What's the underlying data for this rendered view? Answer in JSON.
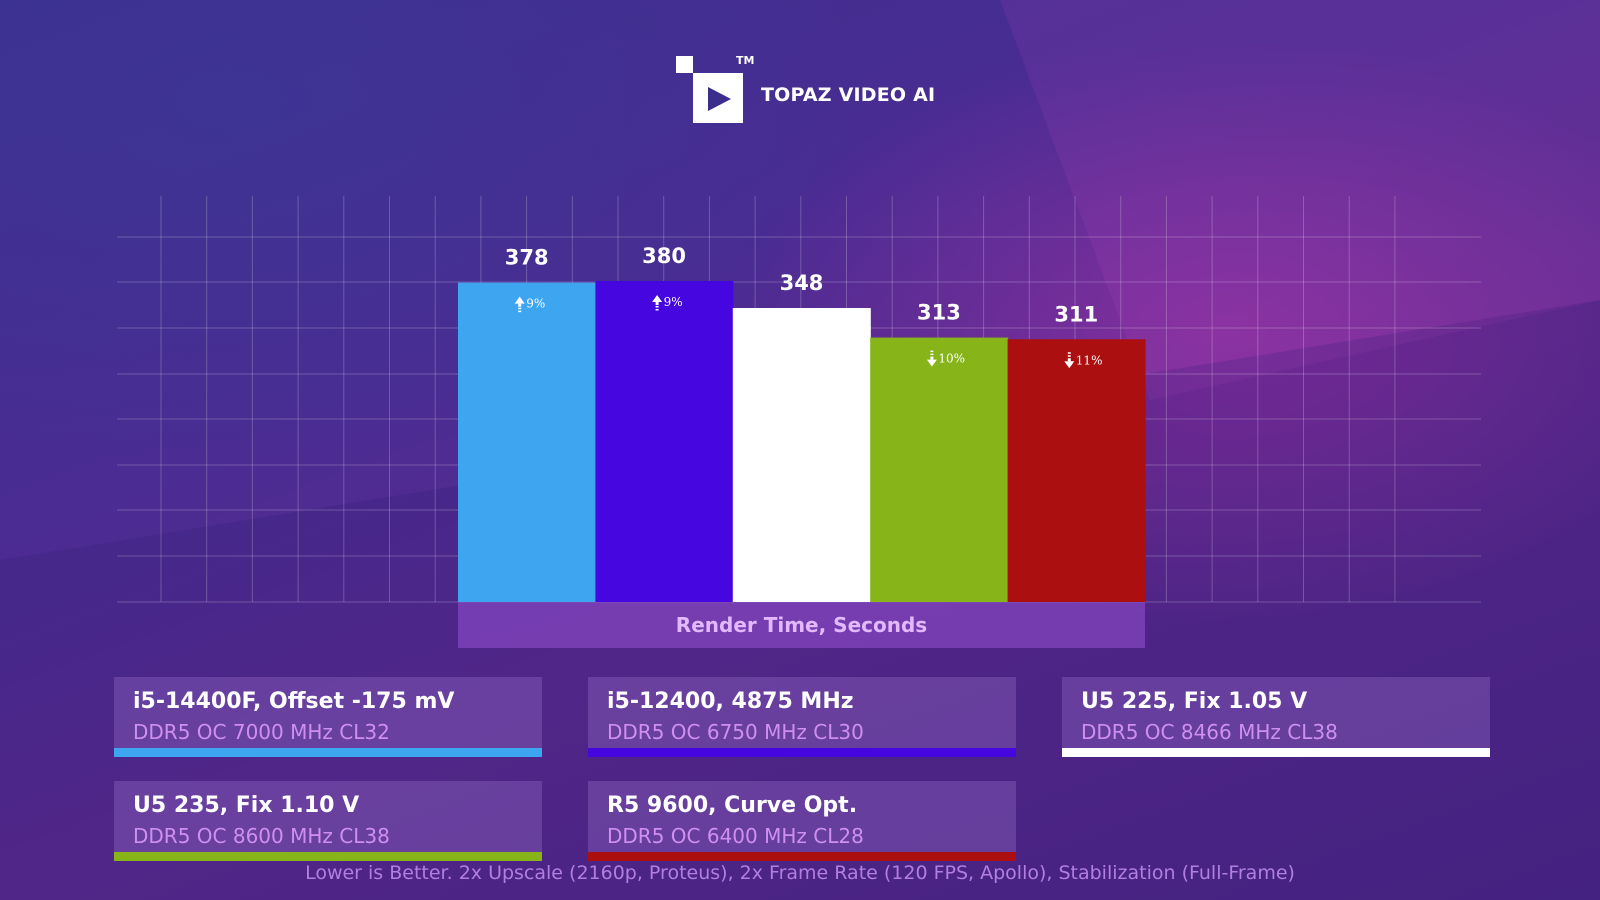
{
  "logo": {
    "brand": "TOPAZ VIDEO AI",
    "trademark": "TM",
    "icon": "play-icon"
  },
  "colors": {
    "series_1": "#3ea6f0",
    "series_2": "#4606e0",
    "series_3": "#ffffff",
    "series_4": "#86b419",
    "series_5": "#ac0f0f"
  },
  "chart_data": {
    "type": "bar",
    "title": "",
    "xlabel": "Render Time, Seconds",
    "ylabel": "",
    "grid": true,
    "bars": [
      {
        "series": "i5-14400F, Offset -175 mV",
        "value": 378,
        "change": "9%",
        "direction": "up",
        "color": "#3ea6f0"
      },
      {
        "series": "i5-12400, 4875 MHz",
        "value": 380,
        "change": "9%",
        "direction": "up",
        "color": "#4606e0"
      },
      {
        "series": "U5 225, Fix 1.05 V",
        "value": 348,
        "change": "",
        "direction": "",
        "color": "#ffffff"
      },
      {
        "series": "U5 235, Fix 1.10 V",
        "value": 313,
        "change": "10%",
        "direction": "down",
        "color": "#86b419"
      },
      {
        "series": "R5 9600, Curve Opt.",
        "value": 311,
        "change": "11%",
        "direction": "down",
        "color": "#ac0f0f"
      }
    ]
  },
  "legend": [
    {
      "title": "i5-14400F, Offset -175 mV",
      "subtitle": "DDR5 OC 7000 MHz CL32",
      "color": "#3ea6f0"
    },
    {
      "title": "i5-12400, 4875 MHz",
      "subtitle": "DDR5 OC 6750 MHz CL30",
      "color": "#4606e0"
    },
    {
      "title": "U5 225, Fix 1.05 V",
      "subtitle": "DDR5 OC 8466 MHz CL38",
      "color": "#ffffff"
    },
    {
      "title": "U5 235, Fix 1.10 V",
      "subtitle": "DDR5 OC 8600 MHz CL38",
      "color": "#86b419"
    },
    {
      "title": "R5 9600, Curve Opt.",
      "subtitle": "DDR5 OC 6400 MHz CL28",
      "color": "#ac0f0f"
    }
  ],
  "footnote": "Lower is Better. 2x Upscale (2160p, Proteus), 2x Frame Rate (120 FPS, Apollo), Stabilization (Full-Frame)"
}
